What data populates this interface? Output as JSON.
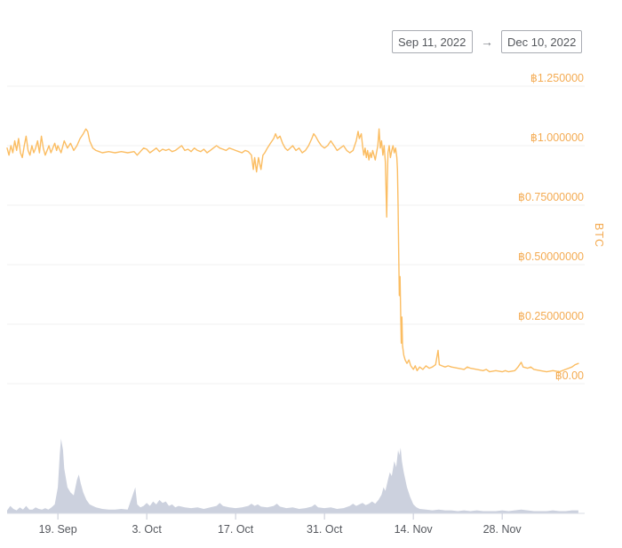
{
  "date_range": {
    "from": "Sep 11, 2022",
    "arrow": "→",
    "to": "Dec 10, 2022"
  },
  "chart_data": [
    {
      "type": "line",
      "name": "price",
      "title": "",
      "xlabel": "",
      "ylabel": "BTC",
      "x_unit": "days since Sep 11, 2022",
      "x_range_days": [
        0,
        91
      ],
      "ylim": [
        0,
        1.3
      ],
      "grid": true,
      "line_color": "#fbbd62",
      "axis_label_color": "#f4ab52",
      "yticks": [
        {
          "v": 0.0,
          "label": "฿0.00"
        },
        {
          "v": 0.25,
          "label": "฿0.25000000"
        },
        {
          "v": 0.5,
          "label": "฿0.50000000"
        },
        {
          "v": 0.75,
          "label": "฿0.75000000"
        },
        {
          "v": 1.0,
          "label": "฿1.000000"
        },
        {
          "v": 1.25,
          "label": "฿1.250000"
        }
      ],
      "xticks": [
        {
          "day": 8,
          "label": "19. Sep"
        },
        {
          "day": 22,
          "label": "3. Oct"
        },
        {
          "day": 36,
          "label": "17. Oct"
        },
        {
          "day": 50,
          "label": "31. Oct"
        },
        {
          "day": 64,
          "label": "14. Nov"
        },
        {
          "day": 78,
          "label": "28. Nov"
        }
      ],
      "xtick_color": "#55585e",
      "points": [
        [
          0,
          0.99
        ],
        [
          0.3,
          0.96
        ],
        [
          0.6,
          1.0
        ],
        [
          0.9,
          0.97
        ],
        [
          1.2,
          1.02
        ],
        [
          1.5,
          0.98
        ],
        [
          1.8,
          1.03
        ],
        [
          2.1,
          0.97
        ],
        [
          2.4,
          0.95
        ],
        [
          2.7,
          1.0
        ],
        [
          3,
          1.04
        ],
        [
          3.3,
          0.98
        ],
        [
          3.6,
          0.96
        ],
        [
          3.9,
          1.0
        ],
        [
          4.2,
          0.97
        ],
        [
          4.5,
          0.99
        ],
        [
          4.8,
          1.02
        ],
        [
          5.1,
          0.97
        ],
        [
          5.4,
          1.04
        ],
        [
          5.7,
          0.99
        ],
        [
          6,
          0.96
        ],
        [
          6.3,
          0.98
        ],
        [
          6.6,
          1.0
        ],
        [
          6.9,
          0.97
        ],
        [
          7.2,
          0.99
        ],
        [
          7.5,
          1.01
        ],
        [
          7.8,
          0.98
        ],
        [
          8,
          1.0
        ],
        [
          8.5,
          0.97
        ],
        [
          9,
          1.02
        ],
        [
          9.5,
          0.99
        ],
        [
          10,
          1.01
        ],
        [
          10.5,
          0.98
        ],
        [
          11,
          1.0
        ],
        [
          11.5,
          1.03
        ],
        [
          12,
          1.05
        ],
        [
          12.4,
          1.07
        ],
        [
          12.7,
          1.06
        ],
        [
          13,
          1.02
        ],
        [
          13.5,
          0.99
        ],
        [
          14,
          0.98
        ],
        [
          14.5,
          0.975
        ],
        [
          15,
          0.97
        ],
        [
          16,
          0.975
        ],
        [
          17,
          0.97
        ],
        [
          18,
          0.975
        ],
        [
          19,
          0.97
        ],
        [
          20,
          0.975
        ],
        [
          20.5,
          0.96
        ],
        [
          21,
          0.975
        ],
        [
          21.5,
          0.99
        ],
        [
          22,
          0.985
        ],
        [
          22.5,
          0.97
        ],
        [
          23,
          0.98
        ],
        [
          23.5,
          0.99
        ],
        [
          24,
          0.975
        ],
        [
          24.5,
          0.985
        ],
        [
          25,
          0.98
        ],
        [
          25.5,
          0.985
        ],
        [
          26,
          0.975
        ],
        [
          26.5,
          0.98
        ],
        [
          27,
          0.99
        ],
        [
          27.5,
          1.0
        ],
        [
          28,
          0.98
        ],
        [
          28.5,
          0.985
        ],
        [
          29,
          0.975
        ],
        [
          29.5,
          0.99
        ],
        [
          30,
          0.98
        ],
        [
          30.5,
          0.975
        ],
        [
          31,
          0.985
        ],
        [
          31.5,
          0.97
        ],
        [
          32,
          0.98
        ],
        [
          32.5,
          0.99
        ],
        [
          33,
          1.0
        ],
        [
          33.5,
          0.99
        ],
        [
          34,
          0.985
        ],
        [
          34.5,
          0.98
        ],
        [
          35,
          0.99
        ],
        [
          35.5,
          0.985
        ],
        [
          36,
          0.98
        ],
        [
          36.5,
          0.975
        ],
        [
          37,
          0.97
        ],
        [
          37.5,
          0.98
        ],
        [
          38,
          0.975
        ],
        [
          38.5,
          0.96
        ],
        [
          38.8,
          0.9
        ],
        [
          39,
          0.95
        ],
        [
          39.3,
          0.89
        ],
        [
          39.6,
          0.95
        ],
        [
          40,
          0.9
        ],
        [
          40.3,
          0.96
        ],
        [
          40.6,
          0.97
        ],
        [
          41,
          0.99
        ],
        [
          41.5,
          1.01
        ],
        [
          42,
          1.03
        ],
        [
          42.3,
          1.05
        ],
        [
          42.6,
          1.03
        ],
        [
          43,
          1.04
        ],
        [
          43.4,
          1.01
        ],
        [
          43.8,
          0.99
        ],
        [
          44.2,
          0.98
        ],
        [
          44.6,
          0.99
        ],
        [
          45,
          1.0
        ],
        [
          45.5,
          0.98
        ],
        [
          46,
          0.99
        ],
        [
          46.5,
          0.97
        ],
        [
          47,
          0.98
        ],
        [
          47.5,
          1.0
        ],
        [
          48,
          1.03
        ],
        [
          48.3,
          1.05
        ],
        [
          48.6,
          1.04
        ],
        [
          49,
          1.02
        ],
        [
          49.5,
          1.0
        ],
        [
          50,
          0.99
        ],
        [
          50.5,
          1.0
        ],
        [
          51,
          1.02
        ],
        [
          51.5,
          1.0
        ],
        [
          52,
          0.98
        ],
        [
          52.5,
          0.99
        ],
        [
          53,
          1.0
        ],
        [
          53.5,
          0.98
        ],
        [
          54,
          0.97
        ],
        [
          54.5,
          0.98
        ],
        [
          55,
          1.02
        ],
        [
          55.3,
          1.06
        ],
        [
          55.5,
          1.03
        ],
        [
          55.8,
          1.05
        ],
        [
          56,
          1.0
        ],
        [
          56.2,
          0.96
        ],
        [
          56.4,
          0.99
        ],
        [
          56.6,
          0.95
        ],
        [
          56.8,
          0.98
        ],
        [
          57,
          0.94
        ],
        [
          57.2,
          0.97
        ],
        [
          57.4,
          0.95
        ],
        [
          57.6,
          0.98
        ],
        [
          57.8,
          0.96
        ],
        [
          58,
          0.94
        ],
        [
          58.2,
          0.97
        ],
        [
          58.4,
          1.0
        ],
        [
          58.6,
          1.07
        ],
        [
          58.8,
          0.99
        ],
        [
          59,
          1.02
        ],
        [
          59.2,
          0.96
        ],
        [
          59.4,
          1.0
        ],
        [
          59.6,
          0.93
        ],
        [
          59.8,
          0.7
        ],
        [
          59.9,
          0.85
        ],
        [
          60,
          0.97
        ],
        [
          60.2,
          1.0
        ],
        [
          60.4,
          0.95
        ],
        [
          60.6,
          0.98
        ],
        [
          60.8,
          1.0
        ],
        [
          61,
          0.97
        ],
        [
          61.2,
          0.99
        ],
        [
          61.4,
          0.95
        ],
        [
          61.5,
          0.9
        ],
        [
          61.6,
          0.75
        ],
        [
          61.7,
          0.55
        ],
        [
          61.8,
          0.37
        ],
        [
          61.9,
          0.45
        ],
        [
          62,
          0.3
        ],
        [
          62.1,
          0.17
        ],
        [
          62.2,
          0.28
        ],
        [
          62.3,
          0.16
        ],
        [
          62.5,
          0.12
        ],
        [
          62.7,
          0.1
        ],
        [
          63,
          0.085
        ],
        [
          63.3,
          0.1
        ],
        [
          63.6,
          0.075
        ],
        [
          64,
          0.06
        ],
        [
          64.3,
          0.075
        ],
        [
          64.6,
          0.055
        ],
        [
          65,
          0.07
        ],
        [
          65.5,
          0.06
        ],
        [
          66,
          0.075
        ],
        [
          66.5,
          0.065
        ],
        [
          67,
          0.07
        ],
        [
          67.5,
          0.08
        ],
        [
          67.9,
          0.14
        ],
        [
          68.1,
          0.08
        ],
        [
          68.5,
          0.075
        ],
        [
          69,
          0.07
        ],
        [
          69.5,
          0.075
        ],
        [
          70,
          0.07
        ],
        [
          71,
          0.065
        ],
        [
          72,
          0.06
        ],
        [
          72.5,
          0.07
        ],
        [
          73,
          0.065
        ],
        [
          74,
          0.06
        ],
        [
          75,
          0.055
        ],
        [
          75.5,
          0.06
        ],
        [
          76,
          0.05
        ],
        [
          77,
          0.055
        ],
        [
          78,
          0.05
        ],
        [
          78.5,
          0.055
        ],
        [
          79,
          0.05
        ],
        [
          80,
          0.055
        ],
        [
          80.5,
          0.07
        ],
        [
          81,
          0.09
        ],
        [
          81.3,
          0.07
        ],
        [
          82,
          0.065
        ],
        [
          82.5,
          0.07
        ],
        [
          83,
          0.06
        ],
        [
          84,
          0.055
        ],
        [
          85,
          0.05
        ],
        [
          86,
          0.055
        ],
        [
          87,
          0.05
        ],
        [
          88,
          0.06
        ],
        [
          89,
          0.07
        ],
        [
          89.5,
          0.08
        ],
        [
          90,
          0.085
        ]
      ]
    },
    {
      "type": "area",
      "name": "volume",
      "fill_color": "#ccd1de",
      "axis_line_color": "#d9dce6",
      "tick_color": "#c6cad6",
      "y_scale": "relative (0-1 of max volume)",
      "points": [
        [
          0,
          0.04
        ],
        [
          0.5,
          0.1
        ],
        [
          1,
          0.06
        ],
        [
          1.5,
          0.04
        ],
        [
          2,
          0.08
        ],
        [
          2.5,
          0.05
        ],
        [
          3,
          0.1
        ],
        [
          3.5,
          0.05
        ],
        [
          4,
          0.05
        ],
        [
          4.5,
          0.08
        ],
        [
          5,
          0.06
        ],
        [
          5.5,
          0.05
        ],
        [
          6,
          0.07
        ],
        [
          6.5,
          0.05
        ],
        [
          7,
          0.08
        ],
        [
          7.5,
          0.12
        ],
        [
          8,
          0.35
        ],
        [
          8.3,
          0.8
        ],
        [
          8.5,
          1.0
        ],
        [
          8.8,
          0.85
        ],
        [
          9,
          0.6
        ],
        [
          9.5,
          0.35
        ],
        [
          10,
          0.28
        ],
        [
          10.5,
          0.24
        ],
        [
          11,
          0.45
        ],
        [
          11.3,
          0.52
        ],
        [
          11.6,
          0.4
        ],
        [
          12,
          0.28
        ],
        [
          12.5,
          0.18
        ],
        [
          13,
          0.12
        ],
        [
          13.5,
          0.1
        ],
        [
          14,
          0.08
        ],
        [
          15,
          0.06
        ],
        [
          16,
          0.05
        ],
        [
          17,
          0.05
        ],
        [
          18,
          0.06
        ],
        [
          19,
          0.05
        ],
        [
          20,
          0.3
        ],
        [
          20.2,
          0.35
        ],
        [
          20.5,
          0.12
        ],
        [
          21,
          0.08
        ],
        [
          21.5,
          0.1
        ],
        [
          22,
          0.14
        ],
        [
          22.5,
          0.1
        ],
        [
          23,
          0.16
        ],
        [
          23.5,
          0.12
        ],
        [
          24,
          0.18
        ],
        [
          24.5,
          0.14
        ],
        [
          25,
          0.16
        ],
        [
          25.5,
          0.1
        ],
        [
          26,
          0.12
        ],
        [
          26.5,
          0.08
        ],
        [
          27,
          0.1
        ],
        [
          28,
          0.08
        ],
        [
          29,
          0.07
        ],
        [
          30,
          0.08
        ],
        [
          31,
          0.06
        ],
        [
          32,
          0.08
        ],
        [
          33,
          0.1
        ],
        [
          33.5,
          0.14
        ],
        [
          34,
          0.1
        ],
        [
          35,
          0.08
        ],
        [
          36,
          0.07
        ],
        [
          37,
          0.08
        ],
        [
          38,
          0.1
        ],
        [
          38.5,
          0.13
        ],
        [
          39,
          0.1
        ],
        [
          39.5,
          0.12
        ],
        [
          40,
          0.09
        ],
        [
          41,
          0.08
        ],
        [
          42,
          0.1
        ],
        [
          42.5,
          0.13
        ],
        [
          43,
          0.09
        ],
        [
          44,
          0.07
        ],
        [
          45,
          0.08
        ],
        [
          46,
          0.06
        ],
        [
          47,
          0.07
        ],
        [
          48,
          0.09
        ],
        [
          48.5,
          0.12
        ],
        [
          49,
          0.08
        ],
        [
          50,
          0.07
        ],
        [
          51,
          0.08
        ],
        [
          52,
          0.06
        ],
        [
          53,
          0.07
        ],
        [
          54,
          0.1
        ],
        [
          54.5,
          0.13
        ],
        [
          55,
          0.1
        ],
        [
          55.5,
          0.12
        ],
        [
          56,
          0.14
        ],
        [
          56.5,
          0.11
        ],
        [
          57,
          0.13
        ],
        [
          57.5,
          0.16
        ],
        [
          58,
          0.13
        ],
        [
          58.5,
          0.18
        ],
        [
          59,
          0.25
        ],
        [
          59.3,
          0.35
        ],
        [
          59.6,
          0.3
        ],
        [
          60,
          0.45
        ],
        [
          60.3,
          0.55
        ],
        [
          60.6,
          0.5
        ],
        [
          61,
          0.7
        ],
        [
          61.3,
          0.62
        ],
        [
          61.6,
          0.85
        ],
        [
          61.8,
          0.78
        ],
        [
          62,
          0.88
        ],
        [
          62.2,
          0.7
        ],
        [
          62.5,
          0.55
        ],
        [
          63,
          0.35
        ],
        [
          63.5,
          0.22
        ],
        [
          64,
          0.12
        ],
        [
          64.5,
          0.08
        ],
        [
          65,
          0.06
        ],
        [
          66,
          0.05
        ],
        [
          67,
          0.04
        ],
        [
          68,
          0.05
        ],
        [
          69,
          0.04
        ],
        [
          70,
          0.04
        ],
        [
          71,
          0.03
        ],
        [
          72,
          0.04
        ],
        [
          73,
          0.03
        ],
        [
          74,
          0.04
        ],
        [
          75,
          0.03
        ],
        [
          76,
          0.03
        ],
        [
          77,
          0.03
        ],
        [
          78,
          0.04
        ],
        [
          79,
          0.03
        ],
        [
          80,
          0.04
        ],
        [
          81,
          0.05
        ],
        [
          82,
          0.04
        ],
        [
          83,
          0.03
        ],
        [
          84,
          0.03
        ],
        [
          85,
          0.03
        ],
        [
          86,
          0.04
        ],
        [
          87,
          0.03
        ],
        [
          88,
          0.03
        ],
        [
          89,
          0.04
        ],
        [
          90,
          0.04
        ]
      ]
    }
  ]
}
